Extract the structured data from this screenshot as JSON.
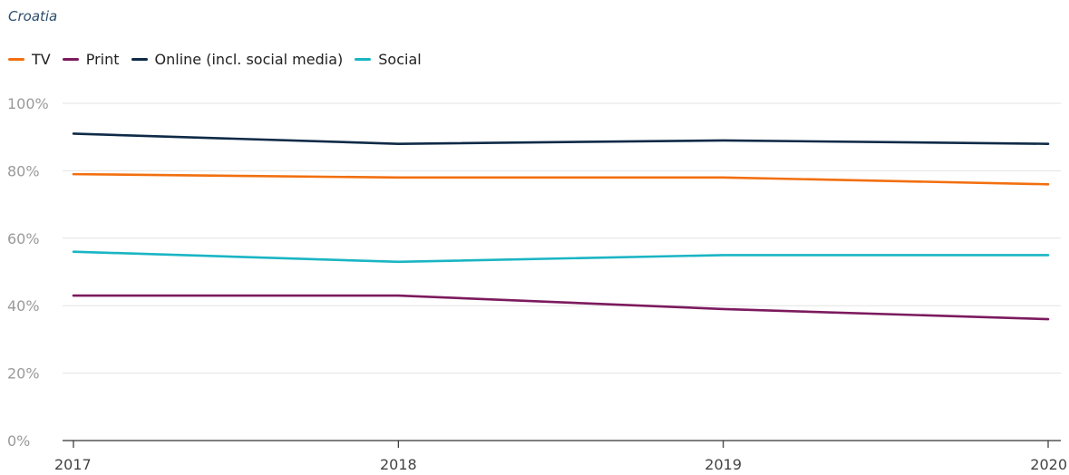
{
  "chart_data": {
    "type": "line",
    "subtitle": "Croatia",
    "categories": [
      "2017",
      "2018",
      "2019",
      "2020"
    ],
    "series": [
      {
        "name": "TV",
        "color": "#f26f0f",
        "values": [
          79,
          78,
          78,
          76
        ]
      },
      {
        "name": "Print",
        "color": "#7c1a5e",
        "values": [
          43,
          43,
          39,
          36
        ]
      },
      {
        "name": "Online (incl. social media)",
        "color": "#0f2a47",
        "values": [
          91,
          88,
          89,
          88
        ]
      },
      {
        "name": "Social",
        "color": "#1ab5c4",
        "values": [
          56,
          53,
          55,
          55
        ]
      }
    ],
    "y_ticks": [
      "0%",
      "20%",
      "40%",
      "60%",
      "80%",
      "100%"
    ],
    "ylim": [
      0,
      100
    ],
    "xlabel": "",
    "ylabel": "",
    "grid": true,
    "legend_position": "top-left"
  }
}
